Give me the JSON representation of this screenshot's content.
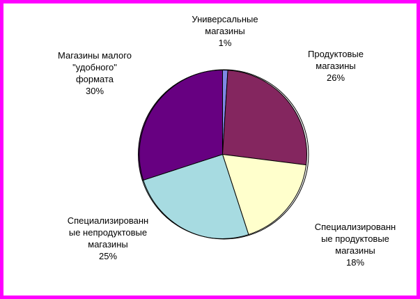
{
  "frame": {
    "border_color": "#ff00ff",
    "background_color": "#ffffff"
  },
  "chart_data": {
    "type": "pie",
    "title": "",
    "start_angle_deg": 0,
    "direction": "clockwise",
    "outline_color": "#000000",
    "legend_position": "none",
    "labels_style": "category-name-and-percent, outside",
    "categories": [
      "Универсальные магазины",
      "Продуктовые магазины",
      "Специализированные продуктовые магазины",
      "Специализированные непродуктовые магазины",
      "Магазины малого \"удобного\" формата"
    ],
    "values": [
      1,
      26,
      18,
      25,
      30
    ],
    "slices": [
      {
        "label": "Универсальные магазины",
        "value_pct": 1,
        "color": "#7f87e6",
        "display": "Универсальные\nмагазины\n1%"
      },
      {
        "label": "Продуктовые магазины",
        "value_pct": 26,
        "color": "#84265f",
        "display": "Продуктовые\nмагазины\n26%"
      },
      {
        "label": "Специализированные продуктовые магазины",
        "value_pct": 18,
        "color": "#ffffcc",
        "display": "Специализированн\nые продуктовые\nмагазины\n18%"
      },
      {
        "label": "Специализированные непродуктовые магазины",
        "value_pct": 25,
        "color": "#a7dbe1",
        "display": "Специализированн\nые непродуктовые\nмагазины\n25%"
      },
      {
        "label": "Магазины малого \"удобного\" формата",
        "value_pct": 30,
        "color": "#670081",
        "display": "Магазины малого\n\"удобного\"\nформата\n30%"
      }
    ]
  }
}
